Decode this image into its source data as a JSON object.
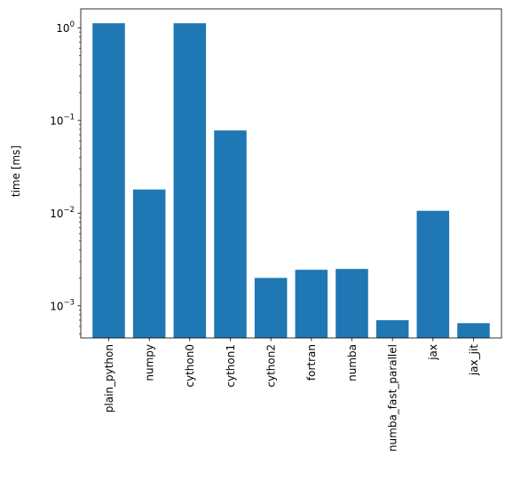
{
  "chart_data": {
    "type": "bar",
    "title": "",
    "xlabel": "",
    "ylabel": "time [ms]",
    "yscale": "log",
    "ylim": [
      0.00045,
      1.6
    ],
    "y_ticks": [
      {
        "value": 0.001,
        "base": "10",
        "exp": "−3"
      },
      {
        "value": 0.01,
        "base": "10",
        "exp": "−2"
      },
      {
        "value": 0.1,
        "base": "10",
        "exp": "−1"
      },
      {
        "value": 1,
        "base": "10",
        "exp": "0"
      }
    ],
    "tick_label_rotation": "vertical",
    "grid": false,
    "legend": "none",
    "bar_color": "#1f77b4",
    "categories": [
      "plain_python",
      "numpy",
      "cython0",
      "cython1",
      "cython2",
      "fortran",
      "numba",
      "numba_fast_parallel",
      "jax",
      "jax_jit"
    ],
    "values": [
      1.12,
      0.018,
      1.12,
      0.078,
      0.002,
      0.00245,
      0.0025,
      0.0007,
      0.0106,
      0.00065
    ]
  }
}
